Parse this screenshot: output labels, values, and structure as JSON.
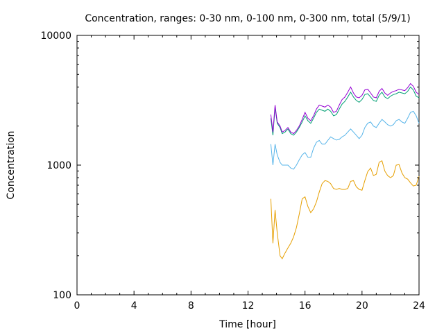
{
  "chart_data": {
    "type": "line",
    "title": "Concentration, ranges: 0-30 nm, 0-100 nm, 0-300 nm, total (5/9/1)",
    "xlabel": "Time [hour]",
    "ylabel": "Concentration",
    "xlim": [
      0,
      24
    ],
    "ylim": [
      100,
      10000
    ],
    "yscale": "log",
    "xticks": [
      0,
      4,
      8,
      12,
      16,
      20,
      24
    ],
    "xtick_labels": [
      "0",
      "4",
      "8",
      "12",
      "16",
      "20",
      "24"
    ],
    "yticks": [
      100,
      1000,
      10000
    ],
    "ytick_labels": [
      "100",
      "1000",
      "10000"
    ],
    "grid": false,
    "legend": "none",
    "colors": [
      "#e69f00",
      "#56b4e9",
      "#009e73",
      "#9400d3"
    ],
    "x": [
      13.6,
      13.75,
      13.9,
      14.05,
      14.25,
      14.4,
      14.6,
      14.8,
      15.0,
      15.2,
      15.4,
      15.6,
      15.8,
      16.0,
      16.2,
      16.4,
      16.6,
      16.8,
      17.0,
      17.2,
      17.4,
      17.6,
      17.8,
      18.0,
      18.2,
      18.4,
      18.6,
      18.8,
      19.0,
      19.2,
      19.4,
      19.6,
      19.8,
      20.0,
      20.2,
      20.4,
      20.6,
      20.8,
      21.0,
      21.2,
      21.4,
      21.6,
      21.8,
      22.0,
      22.2,
      22.4,
      22.6,
      22.8,
      23.0,
      23.2,
      23.4,
      23.6,
      23.8,
      24.0
    ],
    "series": [
      {
        "values": [
          550,
          250,
          450,
          300,
          200,
          190,
          210,
          230,
          250,
          280,
          330,
          420,
          550,
          570,
          480,
          430,
          460,
          520,
          620,
          720,
          760,
          750,
          720,
          660,
          650,
          660,
          650,
          650,
          660,
          750,
          760,
          680,
          650,
          640,
          760,
          890,
          950,
          830,
          850,
          1050,
          1080,
          900,
          830,
          800,
          830,
          1000,
          1010,
          870,
          800,
          780,
          730,
          690,
          700,
          820
        ]
      },
      {
        "values": [
          1450,
          1000,
          1450,
          1200,
          1050,
          1000,
          1000,
          1000,
          950,
          930,
          1000,
          1100,
          1200,
          1250,
          1150,
          1150,
          1350,
          1500,
          1550,
          1450,
          1450,
          1550,
          1650,
          1600,
          1560,
          1580,
          1650,
          1700,
          1800,
          1900,
          1800,
          1700,
          1600,
          1700,
          1950,
          2100,
          2150,
          2000,
          1950,
          2100,
          2250,
          2150,
          2050,
          2000,
          2050,
          2200,
          2250,
          2150,
          2100,
          2300,
          2550,
          2600,
          2400,
          2100
        ]
      },
      {
        "values": [
          2300,
          1700,
          2800,
          2100,
          1950,
          1750,
          1800,
          1900,
          1750,
          1700,
          1800,
          1950,
          2150,
          2400,
          2200,
          2100,
          2300,
          2550,
          2700,
          2650,
          2600,
          2700,
          2600,
          2400,
          2450,
          2700,
          2950,
          3100,
          3350,
          3650,
          3350,
          3150,
          3050,
          3200,
          3500,
          3550,
          3350,
          3150,
          3100,
          3450,
          3650,
          3350,
          3250,
          3400,
          3500,
          3550,
          3650,
          3600,
          3550,
          3700,
          4000,
          3800,
          3400,
          3300
        ]
      },
      {
        "values": [
          2450,
          1800,
          2900,
          2150,
          2000,
          1800,
          1850,
          1950,
          1800,
          1750,
          1850,
          2000,
          2250,
          2550,
          2300,
          2200,
          2400,
          2700,
          2900,
          2850,
          2800,
          2900,
          2800,
          2550,
          2600,
          2900,
          3200,
          3350,
          3650,
          4000,
          3600,
          3350,
          3300,
          3450,
          3800,
          3850,
          3600,
          3350,
          3300,
          3700,
          3900,
          3600,
          3450,
          3600,
          3700,
          3750,
          3850,
          3800,
          3750,
          3950,
          4250,
          4050,
          3650,
          3500
        ]
      }
    ]
  }
}
